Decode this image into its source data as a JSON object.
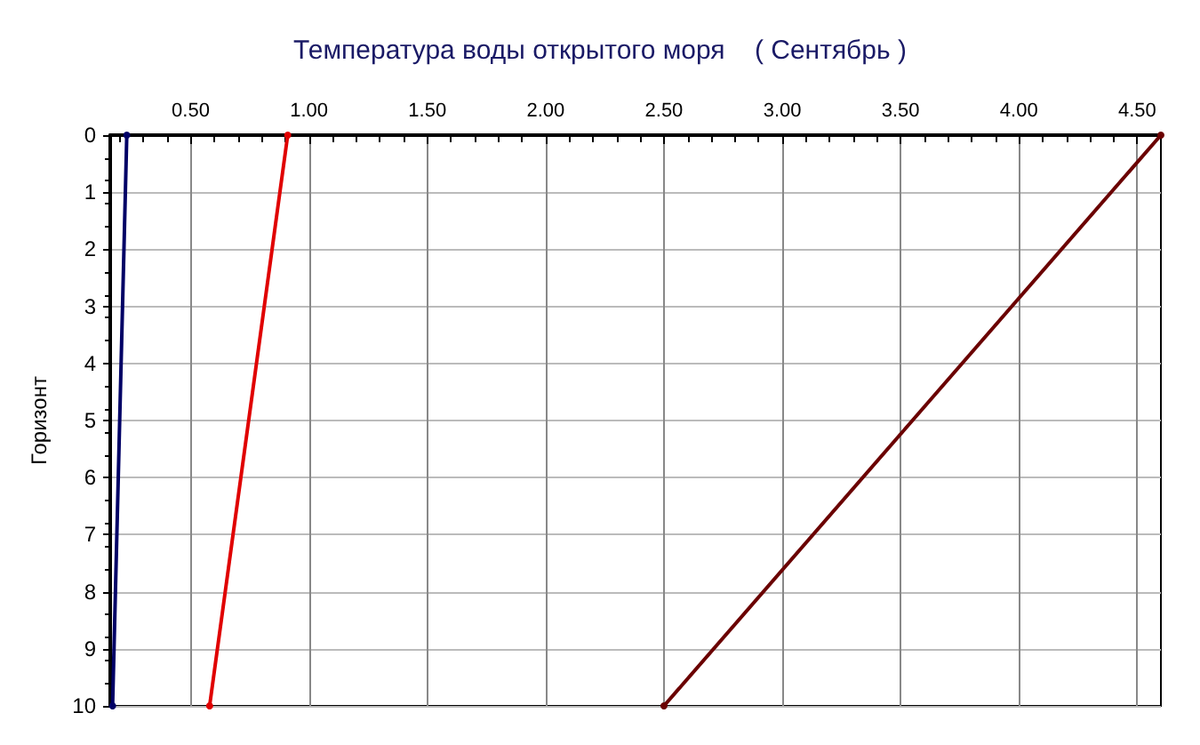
{
  "chart_data": {
    "type": "line",
    "title": "Температура воды открытого моря    ( Сентябрь )",
    "ylabel": "Горизонт",
    "series": [
      {
        "color": "#000066",
        "x": [
          0.23,
          0.17
        ],
        "values": [
          0,
          10
        ]
      },
      {
        "color": "#e00000",
        "x": [
          0.91,
          0.58
        ],
        "values": [
          0,
          10
        ]
      },
      {
        "color": "#6b0000",
        "x": [
          4.6,
          2.5
        ],
        "values": [
          0,
          10
        ]
      }
    ],
    "xlim": [
      0.16,
      4.6
    ],
    "xticks": [
      {
        "value": 0.5,
        "label": "0.50"
      },
      {
        "value": 1,
        "label": "1.00"
      },
      {
        "value": 1.5,
        "label": "1.50"
      },
      {
        "value": 2,
        "label": "2.00"
      },
      {
        "value": 2.5,
        "label": "2.50"
      },
      {
        "value": 3,
        "label": "3.00"
      },
      {
        "value": 3.5,
        "label": "3.50"
      },
      {
        "value": 4,
        "label": "4.00"
      },
      {
        "value": 4.5,
        "label": "4.50"
      }
    ],
    "ylim": [
      10,
      0
    ],
    "yticks": [
      0,
      1,
      2,
      3,
      4,
      5,
      6,
      7,
      8,
      9,
      10
    ],
    "grid": true,
    "marker": "circle",
    "line_style": "solid"
  }
}
